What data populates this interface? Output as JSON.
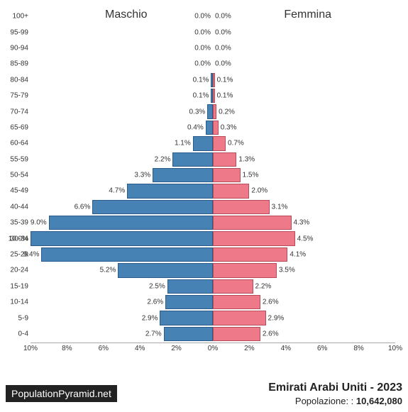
{
  "chart": {
    "type": "population-pyramid",
    "male_label": "Maschio",
    "female_label": "Femmina",
    "male_color": "#4682b4",
    "female_color": "#ee7989",
    "male_border": "#2a5b8a",
    "female_border": "#b84a5a",
    "background": "#ffffff",
    "max_pct": 10,
    "x_ticks": [
      "10%",
      "8%",
      "6%",
      "4%",
      "2%",
      "0%",
      "2%",
      "4%",
      "6%",
      "8%",
      "10%"
    ],
    "label_fontsize": 10,
    "header_fontsize": 16,
    "rows": [
      {
        "age": "100+",
        "male": 0.0,
        "female": 0.0
      },
      {
        "age": "95-99",
        "male": 0.0,
        "female": 0.0
      },
      {
        "age": "90-94",
        "male": 0.0,
        "female": 0.0
      },
      {
        "age": "85-89",
        "male": 0.0,
        "female": 0.0
      },
      {
        "age": "80-84",
        "male": 0.1,
        "female": 0.1
      },
      {
        "age": "75-79",
        "male": 0.1,
        "female": 0.1
      },
      {
        "age": "70-74",
        "male": 0.3,
        "female": 0.2
      },
      {
        "age": "65-69",
        "male": 0.4,
        "female": 0.3
      },
      {
        "age": "60-64",
        "male": 1.1,
        "female": 0.7
      },
      {
        "age": "55-59",
        "male": 2.2,
        "female": 1.3
      },
      {
        "age": "50-54",
        "male": 3.3,
        "female": 1.5
      },
      {
        "age": "45-49",
        "male": 4.7,
        "female": 2.0
      },
      {
        "age": "40-44",
        "male": 6.6,
        "female": 3.1
      },
      {
        "age": "35-39",
        "male": 9.0,
        "female": 4.3
      },
      {
        "age": "30-34",
        "male": 10.0,
        "female": 4.5
      },
      {
        "age": "25-29",
        "male": 9.4,
        "female": 4.1
      },
      {
        "age": "20-24",
        "male": 5.2,
        "female": 3.5
      },
      {
        "age": "15-19",
        "male": 2.5,
        "female": 2.2
      },
      {
        "age": "10-14",
        "male": 2.6,
        "female": 2.6
      },
      {
        "age": "5-9",
        "male": 2.9,
        "female": 2.9
      },
      {
        "age": "0-4",
        "male": 2.7,
        "female": 2.6
      }
    ]
  },
  "footer": {
    "attribution": "PopulationPyramid.net",
    "title": "Emirati Arabi Uniti - 2023",
    "population_label": "Popolazione: : ",
    "population_value": "10,642,080"
  }
}
